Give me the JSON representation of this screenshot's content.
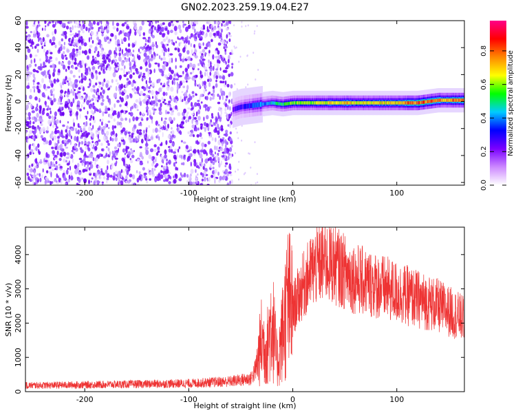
{
  "title": "GN02.2023.259.19.04.E27",
  "chart_data": [
    {
      "type": "heatmap",
      "xlabel": "Height of straight line (km)",
      "ylabel": "Frequency (Hz)",
      "xlim": [
        -257,
        165
      ],
      "ylim": [
        -62,
        60
      ],
      "xticks": [
        -200,
        -100,
        0,
        100
      ],
      "yticks": [
        60,
        40,
        20,
        0,
        -20,
        -40,
        -60
      ],
      "noise_region_x": [
        -257,
        -58
      ],
      "signal_band": {
        "x": [
          -58,
          -50,
          -40,
          -30,
          -20,
          -10,
          0,
          20,
          50,
          80,
          100,
          120,
          140,
          165
        ],
        "center_hz": [
          -6,
          -4,
          -3,
          -2,
          -1,
          -2,
          -1,
          -1,
          -1,
          -1,
          -1,
          -1,
          1,
          1
        ],
        "peak_amplitude": [
          0.25,
          0.3,
          0.35,
          0.4,
          0.45,
          0.55,
          0.6,
          0.62,
          0.72,
          0.68,
          0.7,
          0.85,
          0.75,
          0.8
        ]
      },
      "colorbar": {
        "label": "Normalized spectral amplitude",
        "ticks": [
          0.0,
          0.2,
          0.4,
          0.6,
          0.8
        ],
        "range": [
          0,
          0.98
        ],
        "colors": [
          "#ffffff",
          "#cc88ff",
          "#7a00ff",
          "#0000ff",
          "#00ccff",
          "#00ff00",
          "#ffff00",
          "#ff8800",
          "#ff0000",
          "#ff0088"
        ]
      }
    },
    {
      "type": "line",
      "xlabel": "Height of straight line (km)",
      "ylabel": "SNR (10 * v/v)",
      "xlim": [
        -257,
        165
      ],
      "ylim": [
        0,
        4800
      ],
      "xticks": [
        -200,
        -100,
        0,
        100
      ],
      "yticks": [
        0,
        1000,
        2000,
        3000,
        4000
      ],
      "series": [
        {
          "color": "#ee3333",
          "x": [
            -257,
            -200,
            -150,
            -100,
            -60,
            -40,
            -35,
            -30,
            -25,
            -20,
            -15,
            -10,
            -5,
            0,
            10,
            20,
            30,
            40,
            50,
            60,
            80,
            100,
            120,
            140,
            150,
            160,
            165
          ],
          "y": [
            180,
            200,
            220,
            240,
            300,
            380,
            700,
            1500,
            1200,
            2200,
            800,
            1700,
            2600,
            2400,
            3100,
            3600,
            3800,
            3700,
            3500,
            3300,
            3100,
            2900,
            2700,
            2500,
            2350,
            2200,
            2100
          ]
        }
      ]
    }
  ]
}
